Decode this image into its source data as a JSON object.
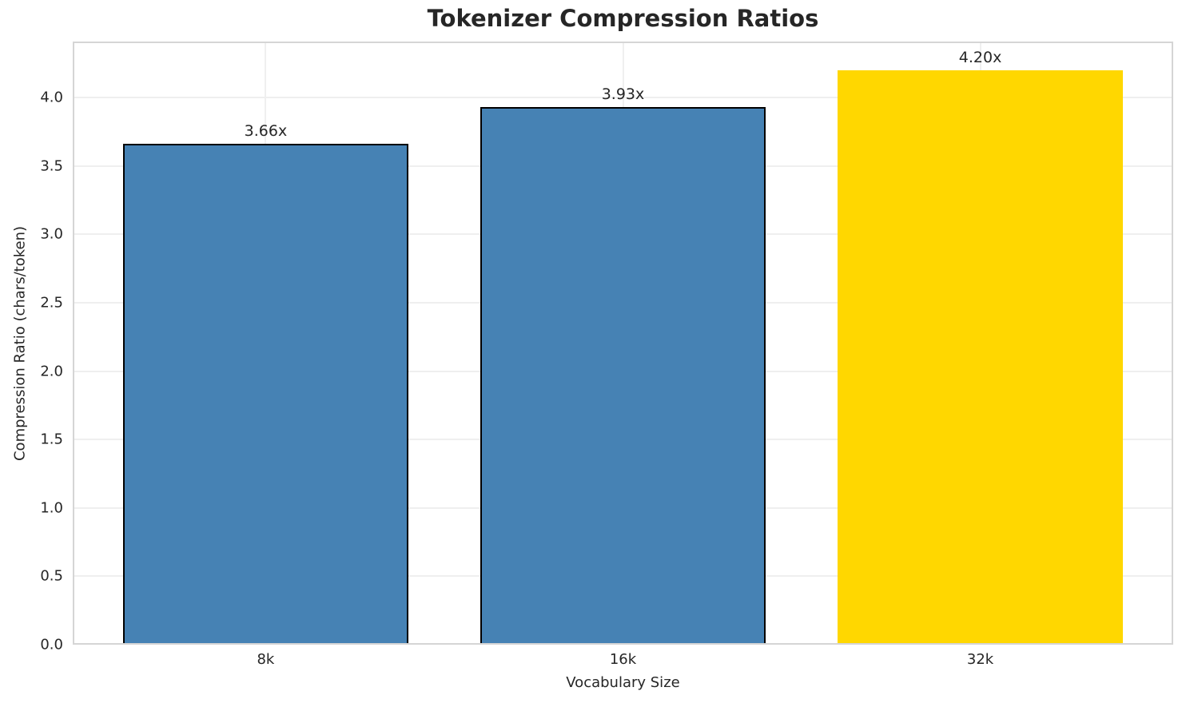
{
  "chart_data": {
    "type": "bar",
    "title": "Tokenizer Compression Ratios",
    "xlabel": "Vocabulary Size",
    "ylabel": "Compression Ratio (chars/token)",
    "categories": [
      "8k",
      "16k",
      "32k"
    ],
    "values": [
      3.66,
      3.93,
      4.2
    ],
    "value_labels": [
      "3.66x",
      "3.93x",
      "4.20x"
    ],
    "bar_colors": [
      "#4682B4",
      "#4682B4",
      "#FFD700"
    ],
    "bar_edge_colors": [
      "#000000",
      "#000000",
      null
    ],
    "bar_edge_width": 2,
    "bar_width": 0.8,
    "xlim": [
      -0.54,
      2.54
    ],
    "ylim": [
      0,
      4.41
    ],
    "yticks": [
      0,
      0.5,
      1,
      1.5,
      2,
      2.5,
      3,
      3.5,
      4
    ],
    "ytick_labels": [
      "0.0",
      "0.5",
      "1.0",
      "1.5",
      "2.0",
      "2.5",
      "3.0",
      "3.5",
      "4.0"
    ],
    "grid": true,
    "legend_position": "none"
  },
  "style": {
    "accent_blue": "#4682B4",
    "accent_gold": "#FFD700",
    "grid_color": "#efefef",
    "spine_color": "#d5d5d5",
    "text_color": "#262626",
    "background": "#ffffff"
  }
}
